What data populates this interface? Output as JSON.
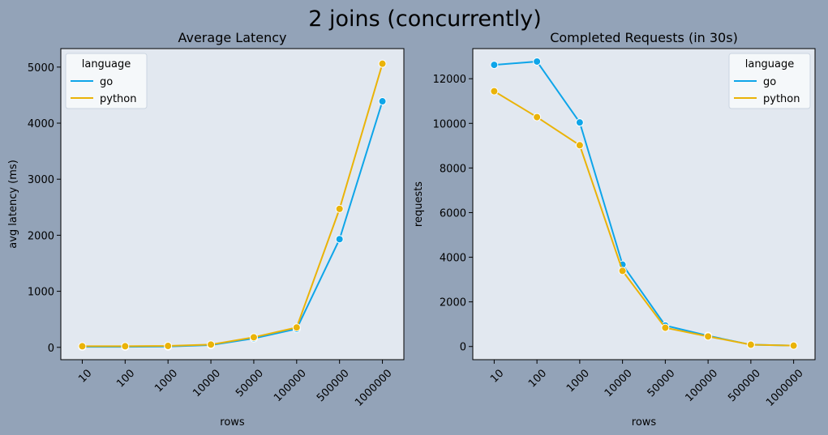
{
  "figure": {
    "suptitle": "2 joins (concurrently)"
  },
  "colors": {
    "figure_bg": "#93a3b8",
    "axes_bg": "#e2e8f0",
    "go": "#0ea5e9",
    "python": "#eab308"
  },
  "chart_data": [
    {
      "type": "line",
      "title": "Average Latency",
      "xlabel": "rows",
      "ylabel": "avg latency (ms)",
      "categories": [
        "10",
        "100",
        "1000",
        "10000",
        "50000",
        "100000",
        "500000",
        "1000000"
      ],
      "ylim": [
        -220,
        5330
      ],
      "yticks": [
        0,
        1000,
        2000,
        3000,
        4000,
        5000
      ],
      "legend": {
        "title": "language",
        "position": "top-left"
      },
      "series": [
        {
          "name": "go",
          "color": "#0ea5e9",
          "values": [
            10,
            10,
            15,
            40,
            160,
            330,
            1930,
            4390
          ]
        },
        {
          "name": "python",
          "color": "#eab308",
          "values": [
            20,
            20,
            25,
            50,
            180,
            355,
            2470,
            5060
          ]
        }
      ]
    },
    {
      "type": "line",
      "title": "Completed Requests (in 30s)",
      "xlabel": "rows",
      "ylabel": "requests",
      "categories": [
        "10",
        "100",
        "1000",
        "10000",
        "50000",
        "100000",
        "500000",
        "1000000"
      ],
      "ylim": [
        -590,
        13350
      ],
      "yticks": [
        0,
        2000,
        4000,
        6000,
        8000,
        10000,
        12000
      ],
      "legend": {
        "title": "language",
        "position": "top-right"
      },
      "series": [
        {
          "name": "go",
          "color": "#0ea5e9",
          "values": [
            12620,
            12770,
            10040,
            3670,
            940,
            480,
            80,
            40
          ]
        },
        {
          "name": "python",
          "color": "#eab308",
          "values": [
            11440,
            10280,
            9020,
            3390,
            840,
            450,
            80,
            40
          ]
        }
      ]
    }
  ]
}
